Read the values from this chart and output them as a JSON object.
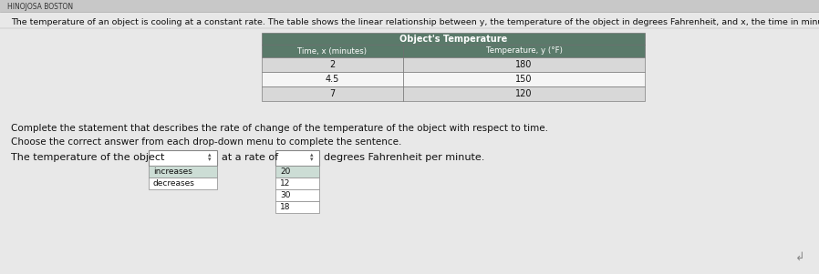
{
  "header_text": "HINOJOSA BOSTON",
  "intro_text": "The temperature of an object is cooling at a constant rate. The table shows the linear relationship between y, the temperature of the object in degrees Fahrenheit, and x, the time in minutes.",
  "table_title": "Object's Temperature",
  "col1_header": "Time, x (minutes)",
  "col2_header": "Temperature, y (°F)",
  "table_data": [
    [
      "2",
      "180"
    ],
    [
      "4.5",
      "150"
    ],
    [
      "7",
      "120"
    ]
  ],
  "complete_text": "Complete the statement that describes the rate of change of the temperature of the object with respect to time.",
  "choose_text": "Choose the correct answer from each drop-down menu to complete the sentence.",
  "sentence_start": "The temperature of the object",
  "sentence_mid": "at a rate of",
  "sentence_end": "degrees Fahrenheit per minute.",
  "dropdown1_options": [
    "increases",
    "decreases"
  ],
  "dropdown2_options": [
    "20",
    "12",
    "30",
    "18"
  ],
  "header_color": "#5a7a6a",
  "row_color_light": "#d8d8d8",
  "row_color_white": "#f5f5f5",
  "bg_color": "#d9d9d9",
  "table_border_color": "#666666",
  "dropdown_border": "#888888",
  "text_color": "#111111",
  "header_text_color": "#777777",
  "white": "#ffffff",
  "top_bar_color": "#c8c8c8"
}
